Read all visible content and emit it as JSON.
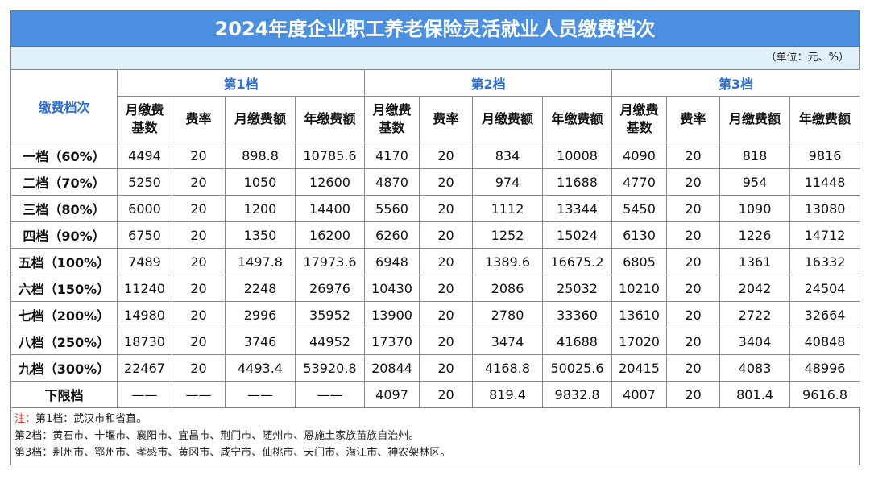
{
  "title": "2024年度企业职工养老保险灵活就业人员缴费档次",
  "unit": "（单位：元、%）",
  "header": {
    "row_label": "缴费档次",
    "groups": [
      "第1档",
      "第2档",
      "第3档"
    ],
    "columns": [
      "月缴费基数",
      "费率",
      "月缴费额",
      "年缴费额"
    ]
  },
  "rows": [
    {
      "level": "一档（60%）",
      "values": [
        "4494",
        "20",
        "898.8",
        "10785.6",
        "4170",
        "20",
        "834",
        "10008",
        "4090",
        "20",
        "818",
        "9816"
      ]
    },
    {
      "level": "二档（70%）",
      "values": [
        "5250",
        "20",
        "1050",
        "12600",
        "4870",
        "20",
        "974",
        "11688",
        "4770",
        "20",
        "954",
        "11448"
      ]
    },
    {
      "level": "三档（80%）",
      "values": [
        "6000",
        "20",
        "1200",
        "14400",
        "5560",
        "20",
        "1112",
        "13344",
        "5450",
        "20",
        "1090",
        "13080"
      ]
    },
    {
      "level": "四档（90%）",
      "values": [
        "6750",
        "20",
        "1350",
        "16200",
        "6260",
        "20",
        "1252",
        "15024",
        "6130",
        "20",
        "1226",
        "14712"
      ]
    },
    {
      "level": "五档（100%）",
      "values": [
        "7489",
        "20",
        "1497.8",
        "17973.6",
        "6948",
        "20",
        "1389.6",
        "16675.2",
        "6805",
        "20",
        "1361",
        "16332"
      ]
    },
    {
      "level": "六档（150%）",
      "values": [
        "11240",
        "20",
        "2248",
        "26976",
        "10430",
        "20",
        "2086",
        "25032",
        "10210",
        "20",
        "2042",
        "24504"
      ]
    },
    {
      "level": "七档（200%）",
      "values": [
        "14980",
        "20",
        "2996",
        "35952",
        "13900",
        "20",
        "2780",
        "33360",
        "13610",
        "20",
        "2722",
        "32664"
      ]
    },
    {
      "level": "八档（250%）",
      "values": [
        "18730",
        "20",
        "3746",
        "44952",
        "17370",
        "20",
        "3474",
        "41688",
        "17020",
        "20",
        "3404",
        "40848"
      ]
    },
    {
      "level": "九档（300%）",
      "values": [
        "22467",
        "20",
        "4493.4",
        "53920.8",
        "20844",
        "20",
        "4168.8",
        "50025.6",
        "20415",
        "20",
        "4083",
        "48996"
      ]
    },
    {
      "level": "下限档",
      "values": [
        "——",
        "——",
        "——",
        "——",
        "4097",
        "20",
        "819.4",
        "9832.8",
        "4007",
        "20",
        "801.4",
        "9616.8"
      ]
    }
  ],
  "notes": {
    "label": "注：",
    "line1": "第1档：武汉市和省直。",
    "line2": "第2档：黄石市、十堰市、襄阳市、宜昌市、荆门市、随州市、恩施土家族苗族自治州。",
    "line3": "第3档：荆州市、鄂州市、孝感市、黄冈市、咸宁市、仙桃市、天门市、潜江市、神农架林区。"
  },
  "colors": {
    "title_bg": "#4a8fe0",
    "unit_bg": "#dff0fa",
    "header_text": "#2f6fd1",
    "note_label": "#e0302a"
  }
}
